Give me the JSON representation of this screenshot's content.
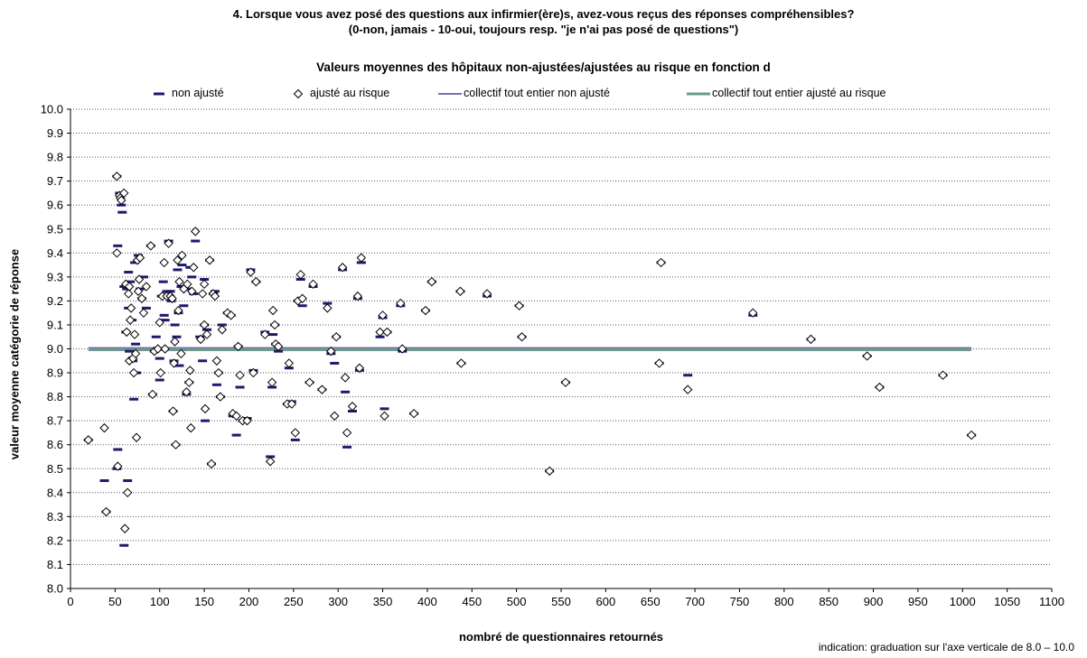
{
  "title_line1": "4. Lorsque vous avez posé des questions aux infirmier(ère)s, avez-vous reçus des réponses compréhensibles?",
  "title_line2": "(0-non, jamais - 10-oui, toujours resp. \"je n'ai pas posé de questions\")",
  "subtitle": "Valeurs moyennes des hôpitaux non-ajustées/ajustées au risque en fonction d",
  "legend": {
    "non_adjusted": "non ajusté",
    "adjusted": "ajusté au risque",
    "overall_non_adjusted": "collectif tout entier non ajusté",
    "overall_adjusted": "collectif tout entier ajusté au risque"
  },
  "xlabel": "nombré de questionnaires retournés",
  "ylabel": "valeur moyenne catégorie de réponse",
  "note": "indication: graduation sur l'axe verticale de 8.0 – 10.0",
  "colors": {
    "non_adjusted": "#1f1a6b",
    "adjusted_outline": "#000000",
    "overall_non_adjusted": "#7b6fb0",
    "overall_adjusted": "#6e9a8c"
  },
  "chart_data": {
    "type": "scatter",
    "xlim": [
      0,
      1100
    ],
    "ylim": [
      8.0,
      10.0
    ],
    "xticks": [
      "0",
      "50",
      "100",
      "150",
      "200",
      "250",
      "300",
      "350",
      "400",
      "450",
      "500",
      "550",
      "600",
      "650",
      "700",
      "750",
      "800",
      "850",
      "900",
      "950",
      "1000",
      "1050",
      "1100"
    ],
    "yticks": [
      "8.0",
      "8.1",
      "8.2",
      "8.3",
      "8.4",
      "8.5",
      "8.6",
      "8.7",
      "8.8",
      "8.9",
      "9.0",
      "9.1",
      "9.2",
      "9.3",
      "9.4",
      "9.5",
      "9.6",
      "9.7",
      "9.8",
      "9.9",
      "10.0"
    ],
    "grid": "horizontal dotted",
    "legend_position": "top",
    "reference_lines": [
      {
        "name": "collectif tout entier non ajusté",
        "y": 9.0
      },
      {
        "name": "collectif tout entier ajusté au risque",
        "y": 9.0
      }
    ],
    "series": [
      {
        "name": "non ajusté",
        "points": [
          [
            20,
            8.62
          ],
          [
            38,
            8.45
          ],
          [
            40,
            8.32
          ],
          [
            52,
            9.72
          ],
          [
            52,
            8.5
          ],
          [
            53,
            9.43
          ],
          [
            53,
            8.58
          ],
          [
            55,
            9.65
          ],
          [
            57,
            9.6
          ],
          [
            58,
            9.57
          ],
          [
            60,
            9.26
          ],
          [
            60,
            8.18
          ],
          [
            62,
            9.07
          ],
          [
            63,
            9.25
          ],
          [
            64,
            8.45
          ],
          [
            65,
            9.32
          ],
          [
            65,
            9.17
          ],
          [
            66,
            8.99
          ],
          [
            67,
            9.28
          ],
          [
            69,
            9.12
          ],
          [
            70,
            8.95
          ],
          [
            71,
            8.79
          ],
          [
            72,
            9.36
          ],
          [
            73,
            9.02
          ],
          [
            74,
            8.9
          ],
          [
            76,
            9.39
          ],
          [
            78,
            9.25
          ],
          [
            80,
            9.21
          ],
          [
            82,
            9.3
          ],
          [
            85,
            9.17
          ],
          [
            90,
            9.43
          ],
          [
            92,
            8.81
          ],
          [
            94,
            8.99
          ],
          [
            96,
            9.05
          ],
          [
            100,
            8.87
          ],
          [
            100,
            8.96
          ],
          [
            102,
            9.22
          ],
          [
            104,
            9.28
          ],
          [
            105,
            9.14
          ],
          [
            106,
            9.12
          ],
          [
            108,
            9.24
          ],
          [
            110,
            9.45
          ],
          [
            112,
            9.24
          ],
          [
            113,
            9.2
          ],
          [
            115,
            8.74
          ],
          [
            116,
            8.95
          ],
          [
            117,
            9.1
          ],
          [
            118,
            8.6
          ],
          [
            119,
            9.05
          ],
          [
            120,
            9.33
          ],
          [
            121,
            9.15
          ],
          [
            122,
            8.93
          ],
          [
            124,
            9.26
          ],
          [
            125,
            9.35
          ],
          [
            127,
            9.18
          ],
          [
            130,
            8.81
          ],
          [
            131,
            9.25
          ],
          [
            133,
            8.86
          ],
          [
            134,
            9.34
          ],
          [
            136,
            9.3
          ],
          [
            138,
            9.23
          ],
          [
            140,
            9.45
          ],
          [
            145,
            9.05
          ],
          [
            148,
            8.95
          ],
          [
            150,
            9.29
          ],
          [
            150,
            9.1
          ],
          [
            151,
            8.7
          ],
          [
            153,
            9.08
          ],
          [
            156,
            9.37
          ],
          [
            158,
            8.52
          ],
          [
            160,
            9.23
          ],
          [
            162,
            9.24
          ],
          [
            164,
            8.85
          ],
          [
            166,
            8.9
          ],
          [
            168,
            8.8
          ],
          [
            170,
            9.1
          ],
          [
            176,
            9.15
          ],
          [
            180,
            9.14
          ],
          [
            182,
            8.72
          ],
          [
            186,
            8.64
          ],
          [
            188,
            9.01
          ],
          [
            190,
            8.84
          ],
          [
            193,
            8.7
          ],
          [
            198,
            8.71
          ],
          [
            202,
            9.33
          ],
          [
            205,
            8.91
          ],
          [
            208,
            9.28
          ],
          [
            218,
            9.07
          ],
          [
            224,
            8.55
          ],
          [
            226,
            8.84
          ],
          [
            227,
            9.06
          ],
          [
            229,
            9.1
          ],
          [
            230,
            9.02
          ],
          [
            233,
            8.99
          ],
          [
            243,
            8.77
          ],
          [
            245,
            8.92
          ],
          [
            248,
            8.78
          ],
          [
            252,
            8.62
          ],
          [
            255,
            9.2
          ],
          [
            258,
            9.29
          ],
          [
            260,
            9.18
          ],
          [
            268,
            8.86
          ],
          [
            272,
            9.26
          ],
          [
            282,
            8.83
          ],
          [
            288,
            9.19
          ],
          [
            292,
            8.98
          ],
          [
            296,
            8.94
          ],
          [
            298,
            9.05
          ],
          [
            305,
            9.33
          ],
          [
            308,
            8.82
          ],
          [
            310,
            8.59
          ],
          [
            316,
            8.74
          ],
          [
            322,
            9.21
          ],
          [
            324,
            8.91
          ],
          [
            326,
            9.36
          ],
          [
            347,
            9.05
          ],
          [
            350,
            9.13
          ],
          [
            352,
            8.75
          ],
          [
            355,
            9.07
          ],
          [
            370,
            9.18
          ],
          [
            372,
            8.99
          ],
          [
            385,
            8.73
          ],
          [
            398,
            9.16
          ],
          [
            405,
            9.28
          ],
          [
            437,
            9.24
          ],
          [
            438,
            8.94
          ],
          [
            467,
            9.22
          ],
          [
            503,
            9.18
          ],
          [
            506,
            9.05
          ],
          [
            537,
            8.49
          ],
          [
            555,
            8.86
          ],
          [
            660,
            8.94
          ],
          [
            662,
            9.36
          ],
          [
            692,
            8.89
          ],
          [
            765,
            9.14
          ],
          [
            830,
            9.04
          ],
          [
            893,
            8.97
          ],
          [
            907,
            8.84
          ],
          [
            978,
            8.89
          ],
          [
            1010,
            8.64
          ]
        ]
      },
      {
        "name": "ajusté au risque",
        "points": [
          [
            20,
            8.62
          ],
          [
            38,
            8.67
          ],
          [
            40,
            8.32
          ],
          [
            52,
            9.72
          ],
          [
            52,
            9.4
          ],
          [
            53,
            8.51
          ],
          [
            55,
            9.64
          ],
          [
            56,
            9.63
          ],
          [
            57,
            9.62
          ],
          [
            60,
            9.65
          ],
          [
            61,
            8.25
          ],
          [
            62,
            9.27
          ],
          [
            63,
            9.07
          ],
          [
            64,
            8.4
          ],
          [
            65,
            9.23
          ],
          [
            66,
            9.26
          ],
          [
            66,
            8.95
          ],
          [
            67,
            9.12
          ],
          [
            68,
            9.17
          ],
          [
            70,
            8.96
          ],
          [
            71,
            8.9
          ],
          [
            72,
            9.06
          ],
          [
            73,
            8.98
          ],
          [
            74,
            8.63
          ],
          [
            75,
            9.37
          ],
          [
            76,
            9.24
          ],
          [
            77,
            9.29
          ],
          [
            78,
            9.38
          ],
          [
            80,
            9.21
          ],
          [
            82,
            9.15
          ],
          [
            85,
            9.26
          ],
          [
            90,
            9.43
          ],
          [
            92,
            8.81
          ],
          [
            94,
            8.99
          ],
          [
            98,
            9.0
          ],
          [
            100,
            9.11
          ],
          [
            101,
            8.9
          ],
          [
            103,
            9.22
          ],
          [
            105,
            9.36
          ],
          [
            106,
            9.0
          ],
          [
            108,
            9.22
          ],
          [
            110,
            9.44
          ],
          [
            112,
            9.22
          ],
          [
            114,
            9.21
          ],
          [
            115,
            8.74
          ],
          [
            116,
            8.94
          ],
          [
            117,
            9.03
          ],
          [
            118,
            8.6
          ],
          [
            120,
            9.37
          ],
          [
            121,
            9.16
          ],
          [
            122,
            9.28
          ],
          [
            124,
            8.98
          ],
          [
            125,
            9.39
          ],
          [
            127,
            9.25
          ],
          [
            130,
            8.82
          ],
          [
            131,
            9.27
          ],
          [
            133,
            8.86
          ],
          [
            134,
            8.91
          ],
          [
            135,
            8.67
          ],
          [
            136,
            9.24
          ],
          [
            138,
            9.34
          ],
          [
            140,
            9.49
          ],
          [
            146,
            9.04
          ],
          [
            148,
            9.23
          ],
          [
            150,
            9.27
          ],
          [
            150,
            9.1
          ],
          [
            151,
            8.75
          ],
          [
            153,
            9.06
          ],
          [
            156,
            9.37
          ],
          [
            158,
            8.52
          ],
          [
            160,
            9.23
          ],
          [
            162,
            9.22
          ],
          [
            164,
            8.95
          ],
          [
            166,
            8.9
          ],
          [
            168,
            8.8
          ],
          [
            170,
            9.08
          ],
          [
            176,
            9.15
          ],
          [
            180,
            9.14
          ],
          [
            182,
            8.73
          ],
          [
            186,
            8.72
          ],
          [
            188,
            9.01
          ],
          [
            190,
            8.89
          ],
          [
            193,
            8.7
          ],
          [
            198,
            8.7
          ],
          [
            202,
            9.32
          ],
          [
            205,
            8.9
          ],
          [
            208,
            9.28
          ],
          [
            218,
            9.06
          ],
          [
            224,
            8.53
          ],
          [
            226,
            8.86
          ],
          [
            227,
            9.16
          ],
          [
            229,
            9.1
          ],
          [
            230,
            9.02
          ],
          [
            233,
            9.01
          ],
          [
            243,
            8.77
          ],
          [
            245,
            8.94
          ],
          [
            248,
            8.77
          ],
          [
            252,
            8.65
          ],
          [
            255,
            9.2
          ],
          [
            258,
            9.31
          ],
          [
            260,
            9.21
          ],
          [
            268,
            8.86
          ],
          [
            272,
            9.27
          ],
          [
            282,
            8.83
          ],
          [
            288,
            9.17
          ],
          [
            292,
            8.99
          ],
          [
            296,
            8.72
          ],
          [
            298,
            9.05
          ],
          [
            305,
            9.34
          ],
          [
            308,
            8.88
          ],
          [
            310,
            8.65
          ],
          [
            316,
            8.76
          ],
          [
            322,
            9.22
          ],
          [
            324,
            8.92
          ],
          [
            326,
            9.38
          ],
          [
            347,
            9.07
          ],
          [
            350,
            9.14
          ],
          [
            352,
            8.72
          ],
          [
            355,
            9.07
          ],
          [
            370,
            9.19
          ],
          [
            372,
            9.0
          ],
          [
            385,
            8.73
          ],
          [
            398,
            9.16
          ],
          [
            405,
            9.28
          ],
          [
            437,
            9.24
          ],
          [
            438,
            8.94
          ],
          [
            467,
            9.23
          ],
          [
            503,
            9.18
          ],
          [
            506,
            9.05
          ],
          [
            537,
            8.49
          ],
          [
            555,
            8.86
          ],
          [
            660,
            8.94
          ],
          [
            662,
            9.36
          ],
          [
            692,
            8.83
          ],
          [
            765,
            9.15
          ],
          [
            830,
            9.04
          ],
          [
            893,
            8.97
          ],
          [
            907,
            8.84
          ],
          [
            978,
            8.89
          ],
          [
            1010,
            8.64
          ]
        ]
      }
    ]
  }
}
